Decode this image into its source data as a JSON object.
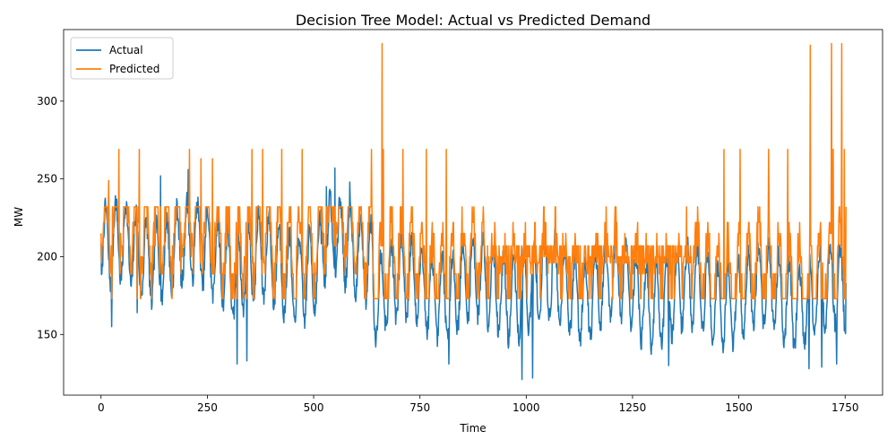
{
  "chart_data": {
    "type": "line",
    "title": "Decision Tree Model: Actual vs Predicted Demand",
    "xlabel": "Time",
    "ylabel": "MW",
    "xlim": [
      -88,
      1838
    ],
    "ylim": [
      111,
      346
    ],
    "xticks": [
      0,
      250,
      500,
      750,
      1000,
      1250,
      1500,
      1750
    ],
    "yticks": [
      150,
      200,
      250,
      300
    ],
    "grid": false,
    "legend": {
      "position": "top-left"
    },
    "series": [
      {
        "name": "Actual",
        "color": "#1f77b4",
        "generator": {
          "n": 1753,
          "segments": [
            {
              "start": 0,
              "end": 300,
              "mean": 203,
              "amp": 30
            },
            {
              "start": 300,
              "end": 520,
              "mean": 193,
              "amp": 32
            },
            {
              "start": 520,
              "end": 640,
              "mean": 205,
              "amp": 30
            },
            {
              "start": 640,
              "end": 1250,
              "mean": 180,
              "amp": 30
            },
            {
              "start": 1250,
              "end": 1753,
              "mean": 175,
              "amp": 30
            }
          ],
          "dips": [
            {
              "x": 990,
              "y": 121
            },
            {
              "x": 1015,
              "y": 122
            },
            {
              "x": 320,
              "y": 131
            },
            {
              "x": 343,
              "y": 133
            },
            {
              "x": 818,
              "y": 131
            },
            {
              "x": 1335,
              "y": 130
            },
            {
              "x": 1665,
              "y": 128
            },
            {
              "x": 1730,
              "y": 131
            },
            {
              "x": 1695,
              "y": 129
            },
            {
              "x": 25,
              "y": 155
            },
            {
              "x": 85,
              "y": 164
            }
          ],
          "peaks": [
            {
              "x": 140,
              "y": 252
            },
            {
              "x": 205,
              "y": 256
            },
            {
              "x": 550,
              "y": 257
            },
            {
              "x": 530,
              "y": 245
            },
            {
              "x": 585,
              "y": 248
            }
          ],
          "start_value": 209,
          "end_value": 183
        }
      },
      {
        "name": "Predicted",
        "color": "#ff7f0e",
        "generator": {
          "levels": [
            173,
            189,
            196,
            200,
            207,
            215,
            222,
            232
          ],
          "spikes": [
            {
              "x": 18,
              "y": 249
            },
            {
              "x": 42,
              "y": 269
            },
            {
              "x": 90,
              "y": 269
            },
            {
              "x": 208,
              "y": 269
            },
            {
              "x": 235,
              "y": 263
            },
            {
              "x": 262,
              "y": 263
            },
            {
              "x": 355,
              "y": 269
            },
            {
              "x": 380,
              "y": 269
            },
            {
              "x": 425,
              "y": 269
            },
            {
              "x": 473,
              "y": 269
            },
            {
              "x": 636,
              "y": 269
            },
            {
              "x": 661,
              "y": 337
            },
            {
              "x": 664,
              "y": 269
            },
            {
              "x": 710,
              "y": 269
            },
            {
              "x": 765,
              "y": 269
            },
            {
              "x": 812,
              "y": 269
            },
            {
              "x": 1465,
              "y": 269
            },
            {
              "x": 1503,
              "y": 269
            },
            {
              "x": 1570,
              "y": 269
            },
            {
              "x": 1615,
              "y": 269
            },
            {
              "x": 1668,
              "y": 336
            },
            {
              "x": 1718,
              "y": 337
            },
            {
              "x": 1742,
              "y": 337
            },
            {
              "x": 1722,
              "y": 269
            },
            {
              "x": 1748,
              "y": 269
            }
          ],
          "quiet_ranges": [
            [
              900,
              1400
            ]
          ],
          "end_value": 232
        }
      }
    ]
  }
}
